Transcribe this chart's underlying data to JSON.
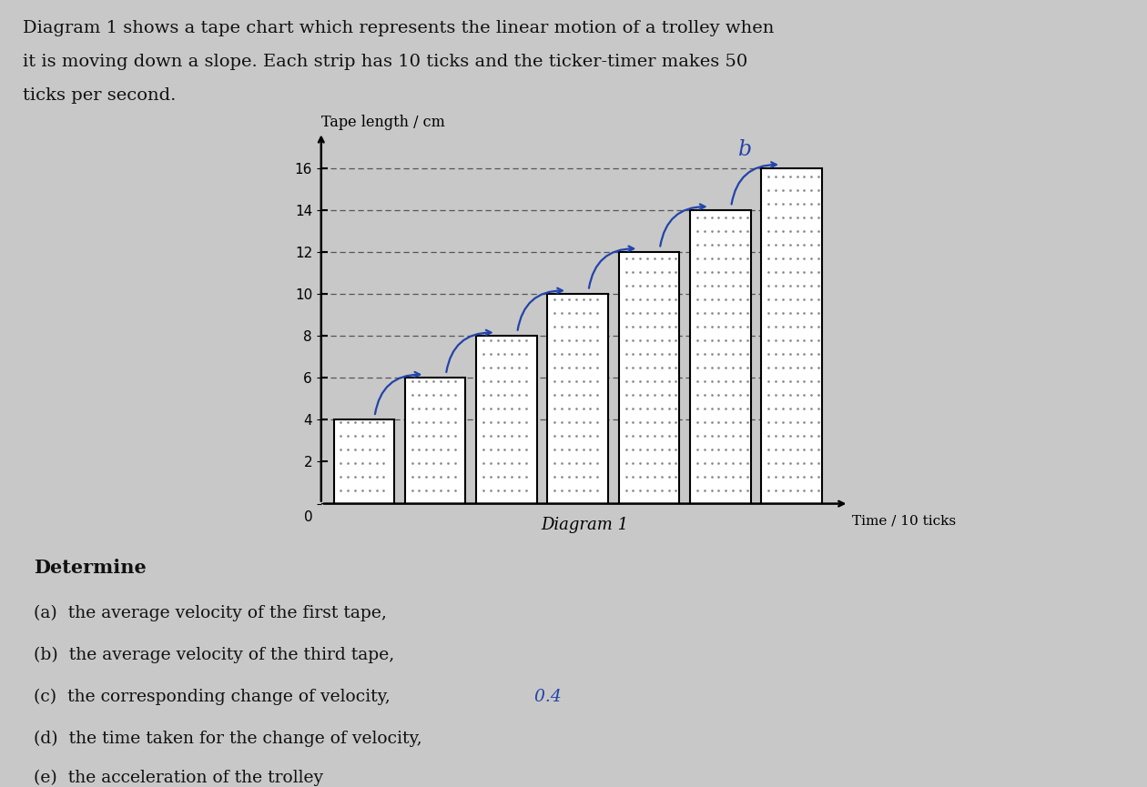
{
  "bar_values": [
    4,
    6,
    8,
    10,
    12,
    14,
    16
  ],
  "bar_width": 0.85,
  "bar_positions": [
    1,
    2,
    3,
    4,
    5,
    6,
    7
  ],
  "ylabel": "Tape length / cm",
  "xlabel": "Time / 10 ticks",
  "diagram_label": "Diagram 1",
  "yticks": [
    0,
    2,
    4,
    6,
    8,
    10,
    12,
    14,
    16
  ],
  "ylim": [
    0,
    18.0
  ],
  "xlim": [
    0.4,
    7.8
  ],
  "title_text_lines": [
    "Diagram 1 shows a tape chart which represents the linear motion of a trolley when",
    "it is moving down a slope. Each strip has 10 ticks and the ticker-timer makes 50",
    "ticks per second."
  ],
  "questions_text": [
    "Determine",
    "(a)  the average velocity of the first tape,",
    "(b)  the average velocity of the third tape,",
    "(c)  the corresponding change of velocity,",
    "(d)  the time taken for the change of velocity,",
    "(e)  the acceleration of the trolley"
  ],
  "annotation_b": "b",
  "annotation_04": "0.4",
  "bg_color": "#c8c8c8",
  "bar_face_color": "white",
  "bar_edge_color": "black",
  "dot_color": "#888888",
  "dashed_line_color": "#555555",
  "arrow_color": "#2244aa",
  "text_color": "#111111"
}
